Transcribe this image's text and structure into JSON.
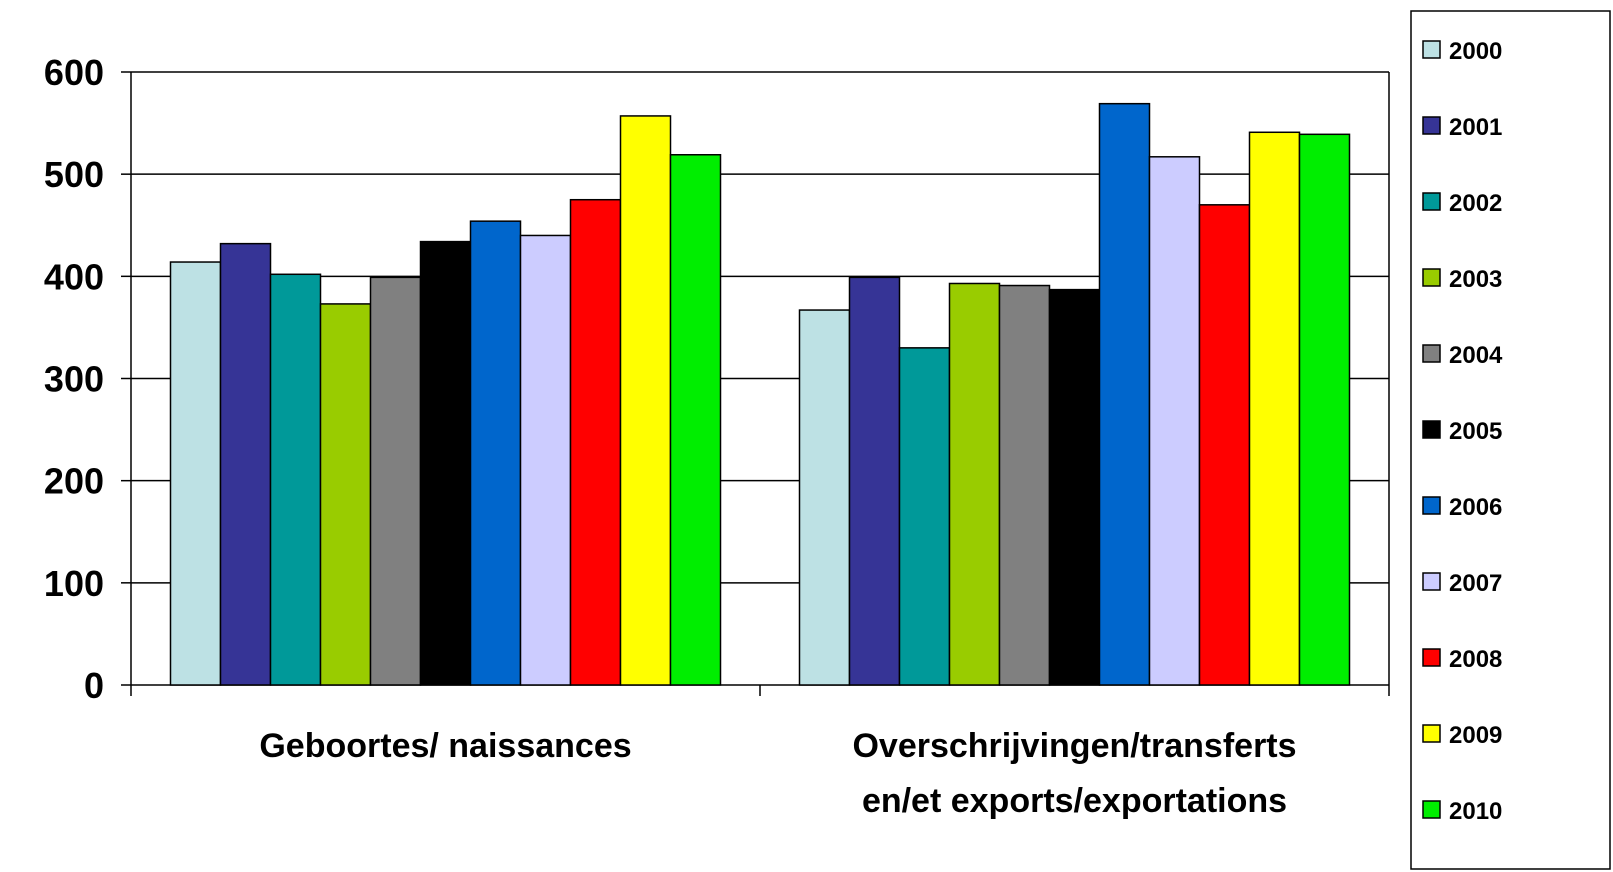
{
  "chart_data": {
    "type": "bar",
    "categories": [
      [
        "Geboortes/ naissances"
      ],
      [
        "Overschrijvingen/transferts",
        "en/et exports/exportations"
      ]
    ],
    "series": [
      {
        "name": "2000",
        "color": "#bde1e4",
        "values": [
          414,
          367
        ]
      },
      {
        "name": "2001",
        "color": "#363496",
        "values": [
          432,
          399
        ]
      },
      {
        "name": "2002",
        "color": "#009999",
        "values": [
          402,
          330
        ]
      },
      {
        "name": "2003",
        "color": "#99cc00",
        "values": [
          373,
          393
        ]
      },
      {
        "name": "2004",
        "color": "#808080",
        "values": [
          399,
          391
        ]
      },
      {
        "name": "2005",
        "color": "#000000",
        "values": [
          434,
          387
        ]
      },
      {
        "name": "2006",
        "color": "#0066cc",
        "values": [
          454,
          569
        ]
      },
      {
        "name": "2007",
        "color": "#ccccff",
        "values": [
          440,
          517
        ]
      },
      {
        "name": "2008",
        "color": "#ff0000",
        "values": [
          475,
          470
        ]
      },
      {
        "name": "2009",
        "color": "#ffff00",
        "values": [
          557,
          541
        ]
      },
      {
        "name": "2010",
        "color": "#00ee00",
        "values": [
          519,
          539
        ]
      }
    ],
    "yticks": [
      "0",
      "100",
      "200",
      "300",
      "400",
      "500",
      "600"
    ],
    "ylim": [
      0,
      600
    ],
    "grid": true,
    "legend": "right"
  }
}
